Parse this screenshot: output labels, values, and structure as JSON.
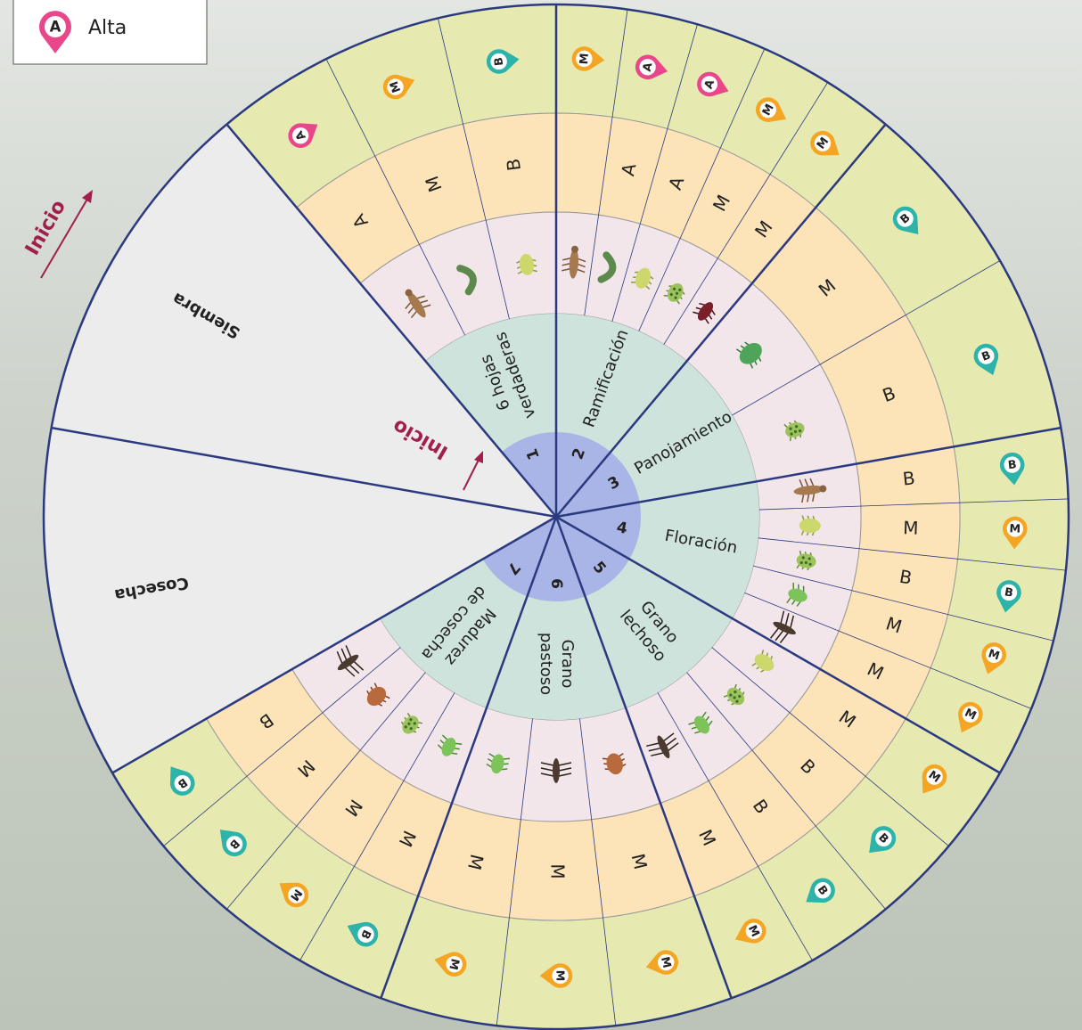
{
  "legend": [
    {
      "symbol": "A",
      "label": "Alta"
    }
  ],
  "start_labels": [
    "Inicio",
    "Inicio"
  ],
  "other_sectors": [
    "Siembra",
    "Cosecha"
  ],
  "alert_colors": {
    "A": "#e8478a",
    "M": "#f5a524",
    "B": "#2db3a9"
  },
  "stages": [
    {
      "number": 1,
      "name": [
        "6 hojas",
        "verdaderas"
      ],
      "levels": [
        "A",
        "M",
        "B"
      ],
      "alerts": [
        "A",
        "M",
        "B"
      ]
    },
    {
      "number": 2,
      "name": [
        "Ramificación"
      ],
      "levels": [
        null,
        "A",
        "A",
        "M",
        "M"
      ],
      "alerts": [
        "M",
        "A",
        "A",
        "M",
        "M"
      ]
    },
    {
      "number": 3,
      "name": [
        "Panojamiento"
      ],
      "levels": [
        "M",
        "B"
      ],
      "alerts": [
        "B",
        "B"
      ]
    },
    {
      "number": 4,
      "name": [
        "Floración"
      ],
      "levels": [
        "B",
        "M",
        "B",
        "M",
        "M"
      ],
      "alerts": [
        "B",
        "M",
        "B",
        "M",
        "M"
      ]
    },
    {
      "number": 5,
      "name": [
        "Grano",
        "lechoso"
      ],
      "levels": [
        "M",
        "B",
        "B",
        "M"
      ],
      "alerts": [
        "M",
        "B",
        "B",
        "M"
      ]
    },
    {
      "number": 6,
      "name": [
        "Grano",
        "pastoso"
      ],
      "levels": [
        "M",
        "M",
        "M"
      ],
      "alerts": [
        "M",
        "M",
        "M"
      ]
    },
    {
      "number": 7,
      "name": [
        "Madurez",
        "de cosecha"
      ],
      "levels": [
        "M",
        "M",
        "M",
        "B"
      ],
      "alerts": [
        "B",
        "M",
        "B",
        "B"
      ]
    }
  ]
}
